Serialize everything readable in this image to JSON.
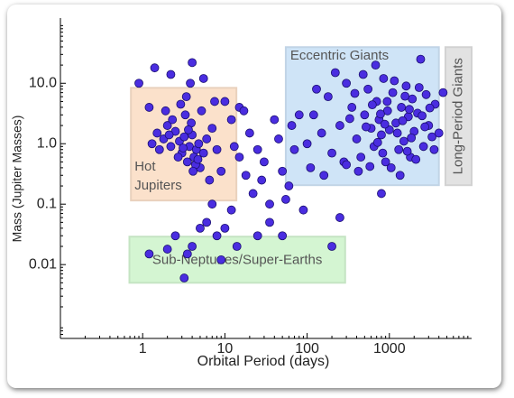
{
  "chart_data": {
    "type": "scatter",
    "x_label": "Orbital Period (days)",
    "y_label": "Mass (Jupiter Masses)",
    "x_scale": "log",
    "y_scale": "log",
    "xlim": [
      0.1,
      10000
    ],
    "ylim": [
      0.0006,
      120
    ],
    "xticks": [
      1,
      10,
      100,
      1000
    ],
    "yticks": [
      0.01,
      0.1,
      {
        "value": 1,
        "label": "1.0"
      },
      {
        "value": 10,
        "label": "10.0"
      }
    ],
    "regions": [
      {
        "label": "Hot Jupiters",
        "color": "#fbe1cb",
        "x": [
          0.72,
          13.8
        ],
        "y": [
          0.115,
          8.4
        ]
      },
      {
        "label": "Eccentric Giants",
        "color": "#cfe4f7",
        "x": [
          55,
          4000
        ],
        "y": [
          0.206,
          39.6
        ]
      },
      {
        "label": "Long-Period Giants",
        "color": "#e2e2e2",
        "x": [
          4800,
          10000
        ],
        "y": [
          0.206,
          39.6
        ]
      },
      {
        "label": "Sub-Neptunes/Super-Earths",
        "color": "#d4f5d2",
        "x": [
          0.69,
          290
        ],
        "y": [
          0.005,
          0.029
        ]
      }
    ],
    "series": [
      {
        "color": "#4a2de0",
        "x": [
          1.5,
          1.8,
          2.0,
          2.2,
          2.5,
          2.8,
          3.0,
          3.2,
          3.5,
          3.7,
          4.0,
          4.2,
          4.5,
          4.8,
          5.0,
          2.3,
          3.3,
          2.7,
          3.9,
          4.4,
          1.3,
          1.6,
          2.1,
          3.1,
          3.6,
          4.1,
          4.7,
          5.5,
          6.0,
          2.9,
          3.4,
          5.2,
          7,
          8,
          9,
          7.5,
          1.2,
          1.9,
          3.8,
          6.5,
          0.9,
          1.4,
          2.2,
          4,
          5.5,
          10,
          12,
          15,
          17,
          13,
          20,
          25,
          30,
          40,
          45,
          50,
          60,
          55,
          70,
          80,
          90,
          35,
          22,
          18,
          15,
          28,
          12,
          10,
          8,
          6,
          5,
          4,
          3.5,
          3.2,
          2.5,
          2,
          1.2,
          7,
          9,
          14,
          25,
          50,
          200,
          250,
          35,
          100,
          120,
          150,
          180,
          200,
          250,
          300,
          350,
          400,
          450,
          500,
          550,
          600,
          650,
          700,
          750,
          800,
          850,
          900,
          950,
          1000,
          1100,
          1200,
          1300,
          1400,
          1500,
          1600,
          1700,
          1800,
          1900,
          2000,
          2200,
          2400,
          2600,
          2800,
          3000,
          3300,
          3600,
          110,
          130,
          160,
          220,
          280,
          330,
          380,
          420,
          480,
          520,
          580,
          620,
          680,
          720,
          780,
          830,
          880,
          940,
          1050,
          1150,
          1250,
          1350,
          1450,
          1550,
          1650,
          1750,
          1850,
          2100,
          2300,
          2500,
          2700,
          3100,
          3500,
          4000,
          4500,
          800,
          300,
          65
        ],
        "values": [
          1.5,
          1.2,
          2.0,
          0.9,
          1.6,
          1.1,
          0.7,
          1.3,
          0.5,
          0.9,
          1.4,
          0.6,
          0.8,
          1.0,
          0.4,
          2.5,
          3.0,
          0.6,
          2.2,
          0.45,
          1.0,
          0.8,
          1.4,
          0.85,
          1.7,
          0.35,
          0.55,
          0.7,
          1.2,
          4.5,
          6.0,
          3.5,
          1.8,
          0.8,
          0.35,
          5,
          4,
          3.5,
          10,
          0.25,
          10,
          18,
          14,
          22,
          12,
          5,
          2.5,
          4,
          3.5,
          0.9,
          1.5,
          0.8,
          0.5,
          2.5,
          1.2,
          0.35,
          0.2,
          0.12,
          0.8,
          3,
          0.08,
          0.05,
          0.15,
          0.3,
          0.6,
          0.25,
          0.08,
          0.04,
          0.03,
          0.05,
          0.04,
          0.02,
          0.015,
          0.006,
          0.03,
          0.018,
          0.015,
          0.1,
          0.012,
          0.02,
          0.03,
          0.03,
          0.02,
          0.06,
          0.1,
          1.0,
          3.0,
          1.5,
          6,
          0.7,
          2,
          10,
          4,
          1.2,
          0.6,
          3,
          8,
          1.8,
          0.9,
          5,
          2.5,
          1.4,
          12,
          0.5,
          3.5,
          1.7,
          7,
          2.2,
          0.8,
          4,
          1.1,
          9,
          2.8,
          0.6,
          5.5,
          1.6,
          3.2,
          25,
          0.9,
          6.5,
          2,
          1.3,
          4.5,
          0.4,
          8,
          0.3,
          15,
          0.5,
          2.6,
          6.8,
          0.35,
          14,
          1.9,
          0.42,
          4.4,
          20,
          1.05,
          3.1,
          0.7,
          2.1,
          5,
          0.4,
          11,
          1.5,
          0.3,
          2.4,
          6.1,
          0.75,
          3.7,
          1.25,
          0.55,
          8.5,
          2.9,
          1.9,
          3.9,
          0.8,
          1.5,
          7,
          0.15,
          0.45,
          2
        ]
      }
    ]
  }
}
